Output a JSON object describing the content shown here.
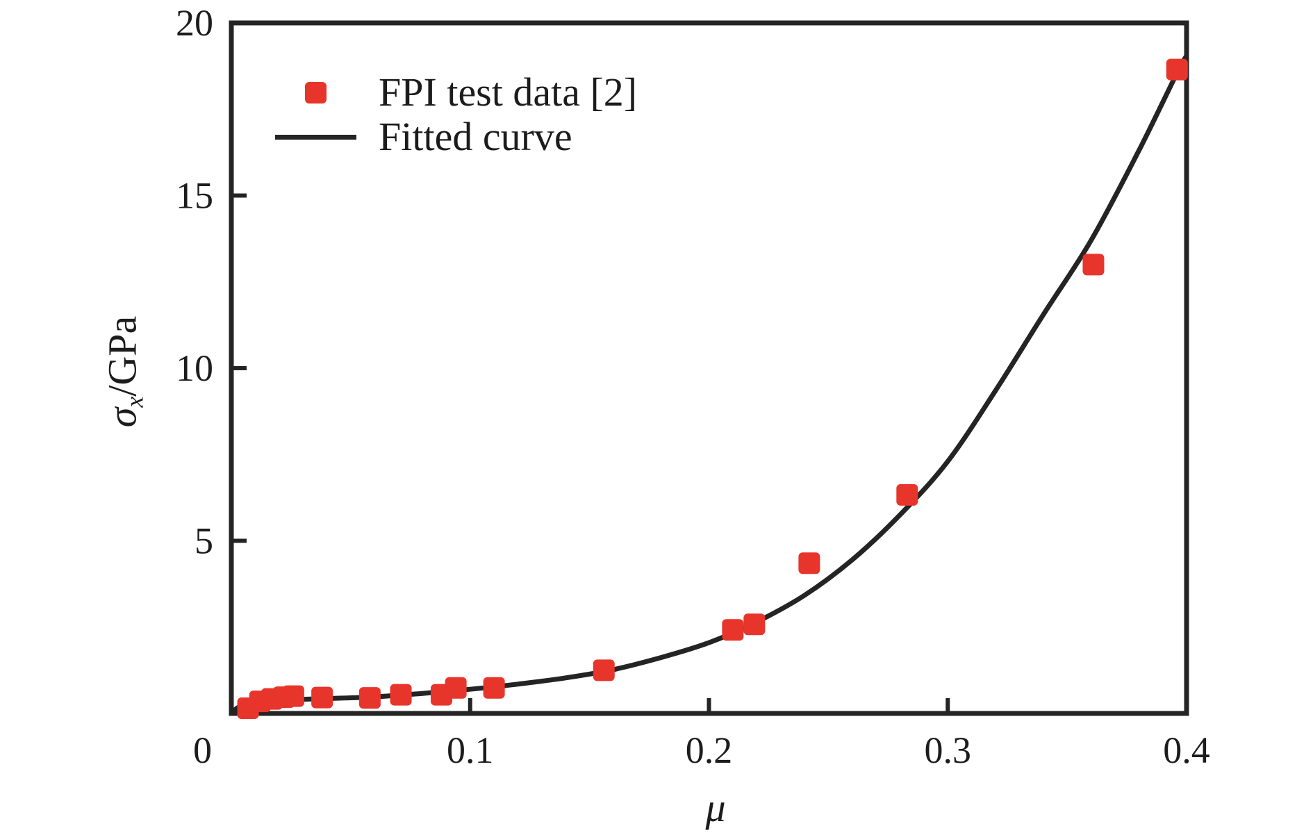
{
  "figure": {
    "background": "#ffffff",
    "text_color": "#1c1c1c",
    "frame_color": "#242424"
  },
  "legend": {
    "position": "top-left-inside",
    "entries": [
      {
        "label": "FPI test data [2]",
        "symbol": "red-square-marker",
        "color": "#e8352b"
      },
      {
        "label": "Fitted curve",
        "symbol": "black-line",
        "color": "#242424"
      }
    ]
  },
  "chart_data": {
    "type": "scatter",
    "title": "",
    "xlabel": "μ",
    "ylabel": "σx/GPa",
    "ylabel_parts": {
      "symbol": "σ",
      "subscript": "x",
      "rest": "/GPa"
    },
    "xlim": [
      0,
      0.4
    ],
    "ylim": [
      0,
      20
    ],
    "x_ticks": [
      0.1,
      0.2,
      0.3,
      0.4
    ],
    "x_tick_labels": [
      "0.1",
      "0.2",
      "0.3",
      "0.4"
    ],
    "origin_label": "0",
    "y_ticks": [
      5,
      10,
      15,
      20
    ],
    "y_tick_labels": [
      "5",
      "10",
      "15",
      "20"
    ],
    "grid": false,
    "series": [
      {
        "name": "FPI test data [2]",
        "type": "scatter",
        "marker": "square",
        "color": "#e8352b",
        "points": [
          [
            0.007,
            0.15
          ],
          [
            0.012,
            0.35
          ],
          [
            0.017,
            0.42
          ],
          [
            0.022,
            0.47
          ],
          [
            0.026,
            0.5
          ],
          [
            0.038,
            0.46
          ],
          [
            0.058,
            0.45
          ],
          [
            0.071,
            0.54
          ],
          [
            0.088,
            0.54
          ],
          [
            0.094,
            0.74
          ],
          [
            0.11,
            0.74
          ],
          [
            0.156,
            1.25
          ],
          [
            0.21,
            2.42
          ],
          [
            0.219,
            2.58
          ],
          [
            0.242,
            4.35
          ],
          [
            0.283,
            6.33
          ],
          [
            0.361,
            13.0
          ],
          [
            0.396,
            18.65
          ]
        ]
      },
      {
        "name": "Fitted curve",
        "type": "line",
        "color": "#242424",
        "points": [
          [
            0.0,
            0.0
          ],
          [
            0.003,
            0.18
          ],
          [
            0.008,
            0.28
          ],
          [
            0.015,
            0.35
          ],
          [
            0.025,
            0.4
          ],
          [
            0.04,
            0.43
          ],
          [
            0.06,
            0.48
          ],
          [
            0.08,
            0.58
          ],
          [
            0.1,
            0.7
          ],
          [
            0.12,
            0.85
          ],
          [
            0.14,
            1.03
          ],
          [
            0.16,
            1.27
          ],
          [
            0.18,
            1.62
          ],
          [
            0.2,
            2.05
          ],
          [
            0.22,
            2.65
          ],
          [
            0.24,
            3.42
          ],
          [
            0.26,
            4.45
          ],
          [
            0.28,
            5.75
          ],
          [
            0.3,
            7.3
          ],
          [
            0.32,
            9.35
          ],
          [
            0.34,
            11.55
          ],
          [
            0.36,
            13.7
          ],
          [
            0.38,
            16.3
          ],
          [
            0.396,
            18.55
          ],
          [
            0.4,
            19.05
          ]
        ]
      }
    ]
  }
}
